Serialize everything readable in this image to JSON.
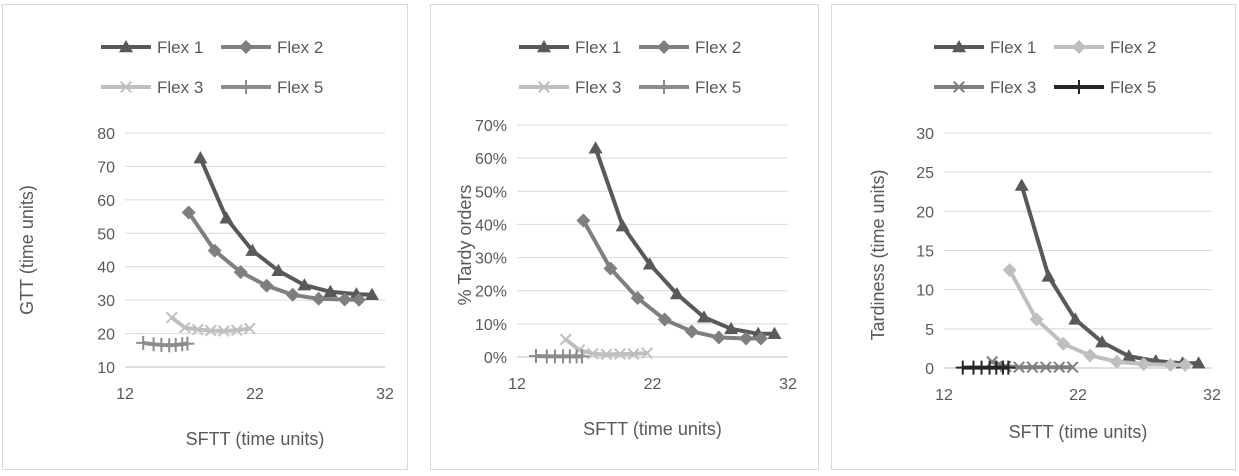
{
  "chart_data": [
    {
      "type": "line",
      "xlabel": "SFTT (time units)",
      "ylabel": "GTT (time units)",
      "xlim": [
        12,
        32
      ],
      "ylim": [
        10,
        80
      ],
      "xticks": [
        "12",
        "22",
        "32"
      ],
      "yticks": [
        "10",
        "20",
        "30",
        "40",
        "50",
        "60",
        "70",
        "80"
      ],
      "grid": "horizontal",
      "legend_position": "top",
      "series": [
        {
          "name": "Flex 1",
          "color": "#595959",
          "marker": "triangle",
          "x": [
            17.8,
            19.8,
            21.8,
            23.8,
            25.8,
            27.8,
            29.8,
            31.0
          ],
          "y": [
            72.5,
            54.5,
            44.8,
            38.8,
            34.5,
            32.5,
            31.8,
            31.6
          ]
        },
        {
          "name": "Flex 2",
          "color": "#7f7f7f",
          "marker": "diamond",
          "x": [
            16.9,
            18.9,
            20.9,
            22.9,
            24.9,
            26.9,
            28.9,
            30.0
          ],
          "y": [
            56.2,
            44.8,
            38.4,
            34.3,
            31.6,
            30.4,
            30.2,
            30.1
          ]
        },
        {
          "name": "Flex 3",
          "color": "#bfbfbf",
          "marker": "x",
          "x": [
            15.6,
            16.6,
            17.6,
            18.6,
            19.6,
            20.6,
            21.6
          ],
          "y": [
            24.8,
            21.8,
            21.2,
            20.9,
            20.8,
            21.0,
            21.5
          ]
        },
        {
          "name": "Flex 5",
          "color": "#8c8c8c",
          "marker": "plus",
          "x": [
            13.4,
            14.2,
            14.8,
            15.4,
            15.9,
            16.4,
            16.8
          ],
          "y": [
            17.2,
            16.8,
            16.6,
            16.5,
            16.6,
            16.8,
            17.0
          ]
        }
      ]
    },
    {
      "type": "line",
      "xlabel": "SFTT (time units)",
      "ylabel": "% Tardy orders",
      "xlim": [
        12,
        32
      ],
      "ylim": [
        0,
        70
      ],
      "xticks": [
        "12",
        "22",
        "32"
      ],
      "yticks": [
        "0%",
        "10%",
        "20%",
        "30%",
        "40%",
        "50%",
        "60%",
        "70%"
      ],
      "grid": "horizontal",
      "legend_position": "top",
      "series": [
        {
          "name": "Flex 1",
          "color": "#595959",
          "marker": "triangle",
          "x": [
            17.8,
            19.8,
            21.8,
            23.8,
            25.8,
            27.8,
            29.8,
            31.0
          ],
          "y": [
            63,
            39.5,
            28,
            19,
            12,
            8.5,
            7,
            7
          ]
        },
        {
          "name": "Flex 2",
          "color": "#7f7f7f",
          "marker": "diamond",
          "x": [
            16.9,
            18.9,
            20.9,
            22.9,
            24.9,
            26.9,
            28.9,
            30.0
          ],
          "y": [
            41.2,
            26.7,
            17.8,
            11.3,
            7.7,
            5.9,
            5.6,
            5.6
          ]
        },
        {
          "name": "Flex 3",
          "color": "#bfbfbf",
          "marker": "x",
          "x": [
            15.6,
            16.6,
            17.6,
            18.6,
            19.6,
            20.6,
            21.6
          ],
          "y": [
            5.3,
            2.1,
            1.0,
            0.8,
            0.9,
            0.9,
            1.2
          ]
        },
        {
          "name": "Flex 5",
          "color": "#8c8c8c",
          "marker": "plus",
          "x": [
            13.4,
            14.2,
            14.8,
            15.4,
            15.9,
            16.4,
            16.8
          ],
          "y": [
            0.3,
            0.2,
            0.2,
            0.2,
            0.2,
            0.2,
            0.2
          ]
        }
      ]
    },
    {
      "type": "line",
      "xlabel": "SFTT (time units)",
      "ylabel": "Tardiness (time units)",
      "xlim": [
        12,
        32
      ],
      "ylim": [
        0,
        30
      ],
      "xticks": [
        "12",
        "22",
        "32"
      ],
      "yticks": [
        "0",
        "5",
        "10",
        "15",
        "20",
        "25",
        "30"
      ],
      "grid": "horizontal",
      "legend_position": "top",
      "series": [
        {
          "name": "Flex 1",
          "color": "#595959",
          "marker": "triangle",
          "x": [
            17.8,
            19.8,
            21.8,
            23.8,
            25.8,
            27.8,
            29.8,
            31.0
          ],
          "y": [
            23.3,
            11.7,
            6.2,
            3.3,
            1.5,
            0.9,
            0.6,
            0.6
          ]
        },
        {
          "name": "Flex 2",
          "color": "#bfbfbf",
          "marker": "diamond",
          "x": [
            16.9,
            18.9,
            20.9,
            22.9,
            24.9,
            26.9,
            28.9,
            30.0
          ],
          "y": [
            12.5,
            6.2,
            3.1,
            1.6,
            0.8,
            0.5,
            0.4,
            0.4
          ]
        },
        {
          "name": "Flex 3",
          "color": "#7f7f7f",
          "marker": "x",
          "x": [
            15.6,
            16.6,
            17.6,
            18.6,
            19.6,
            20.6,
            21.6
          ],
          "y": [
            0.8,
            0.2,
            0.1,
            0.1,
            0.1,
            0.1,
            0.1
          ]
        },
        {
          "name": "Flex 5",
          "color": "#262626",
          "marker": "plus",
          "x": [
            13.4,
            14.2,
            14.8,
            15.4,
            15.9,
            16.4,
            16.8
          ],
          "y": [
            0.05,
            0.05,
            0.05,
            0.05,
            0.05,
            0.05,
            0.05
          ]
        }
      ]
    }
  ]
}
